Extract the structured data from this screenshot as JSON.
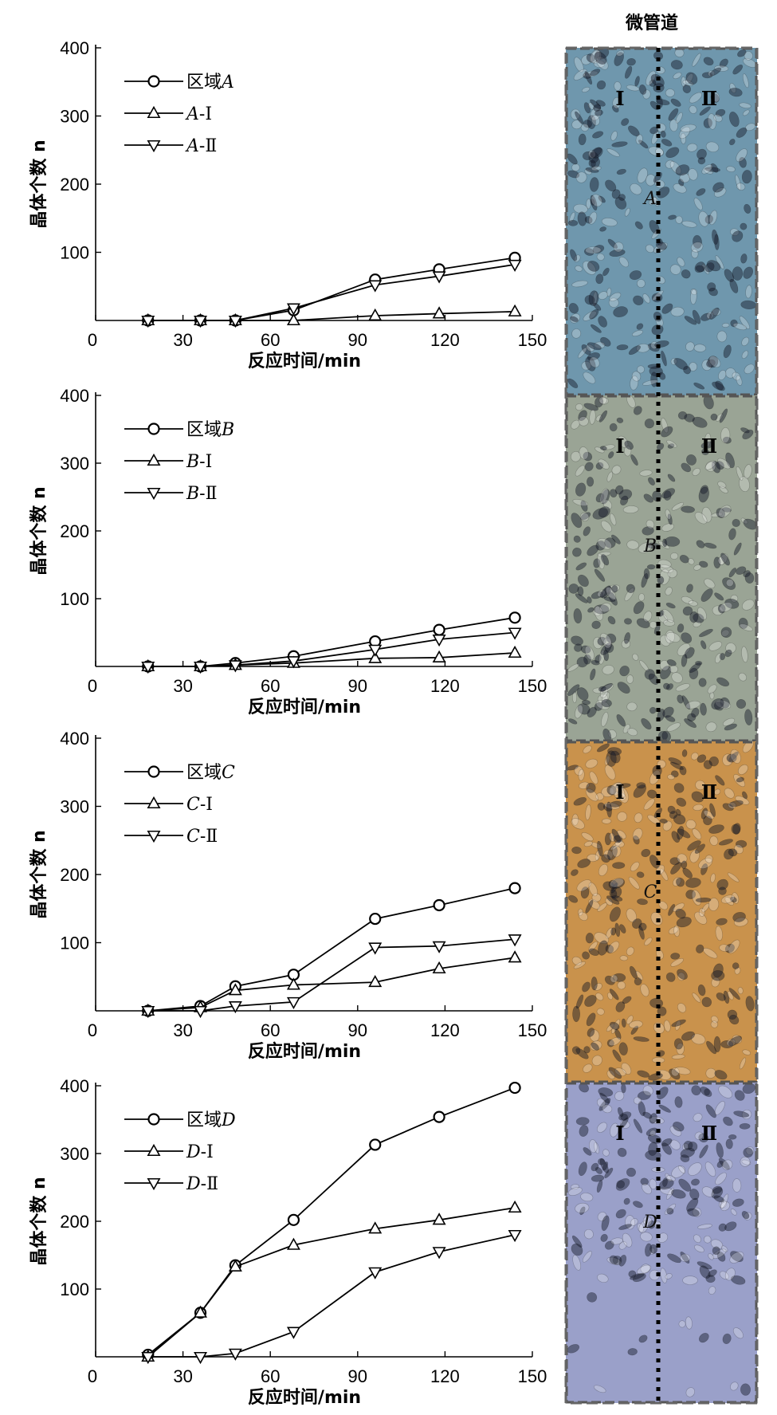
{
  "figure": {
    "channel_title": "微管道",
    "channel_panels": [
      {
        "letter": "A",
        "left_label": "Ⅰ",
        "right_label": "Ⅱ",
        "color": "#6f97ad"
      },
      {
        "letter": "B",
        "left_label": "Ⅰ",
        "right_label": "Ⅱ",
        "color": "#9aa495"
      },
      {
        "letter": "C",
        "left_label": "Ⅰ",
        "right_label": "Ⅱ",
        "color": "#c9924c"
      },
      {
        "letter": "D",
        "left_label": "Ⅰ",
        "right_label": "Ⅱ",
        "color": "#9aa0c9"
      }
    ]
  },
  "chart_data": [
    {
      "type": "line",
      "xlabel": "反应时间/min",
      "ylabel": "晶体个数 n",
      "xlim": [
        0,
        150
      ],
      "ylim": [
        0,
        400
      ],
      "xticks": [
        0,
        30,
        60,
        90,
        120,
        150
      ],
      "yticks": [
        100,
        200,
        300,
        400
      ],
      "legend_position": "top-left",
      "series": [
        {
          "name": "区域A",
          "label_parts": [
            "区域",
            "A"
          ],
          "marker": "circle",
          "x": [
            18,
            36,
            48,
            68,
            96,
            118,
            144
          ],
          "y": [
            0,
            0,
            0,
            15,
            60,
            75,
            92
          ]
        },
        {
          "name": "A-Ⅰ",
          "label_parts": [
            "A",
            "-Ⅰ"
          ],
          "marker": "triangle-up",
          "x": [
            18,
            36,
            48,
            68,
            96,
            118,
            144
          ],
          "y": [
            0,
            0,
            0,
            0,
            7,
            10,
            13
          ]
        },
        {
          "name": "A-Ⅱ",
          "label_parts": [
            "A",
            "-Ⅱ"
          ],
          "marker": "triangle-down",
          "x": [
            18,
            36,
            48,
            68,
            96,
            118,
            144
          ],
          "y": [
            0,
            0,
            0,
            18,
            52,
            65,
            82
          ]
        }
      ]
    },
    {
      "type": "line",
      "xlabel": "反应时间/min",
      "ylabel": "晶体个数 n",
      "xlim": [
        0,
        150
      ],
      "ylim": [
        0,
        400
      ],
      "xticks": [
        0,
        30,
        60,
        90,
        120,
        150
      ],
      "yticks": [
        100,
        200,
        300,
        400
      ],
      "legend_position": "top-left",
      "series": [
        {
          "name": "区域B",
          "label_parts": [
            "区域",
            "B"
          ],
          "marker": "circle",
          "x": [
            18,
            36,
            48,
            68,
            96,
            118,
            144
          ],
          "y": [
            0,
            0,
            5,
            15,
            37,
            54,
            72
          ]
        },
        {
          "name": "B-Ⅰ",
          "label_parts": [
            "B",
            "-Ⅰ"
          ],
          "marker": "triangle-up",
          "x": [
            18,
            36,
            48,
            68,
            96,
            118,
            144
          ],
          "y": [
            0,
            0,
            2,
            5,
            12,
            13,
            20
          ]
        },
        {
          "name": "B-Ⅱ",
          "label_parts": [
            "B",
            "-Ⅱ"
          ],
          "marker": "triangle-down",
          "x": [
            18,
            36,
            48,
            68,
            96,
            118,
            144
          ],
          "y": [
            0,
            0,
            2,
            8,
            25,
            40,
            50
          ]
        }
      ]
    },
    {
      "type": "line",
      "xlabel": "反应时间/min",
      "ylabel": "晶体个数 n",
      "xlim": [
        0,
        150
      ],
      "ylim": [
        0,
        400
      ],
      "xticks": [
        0,
        30,
        60,
        90,
        120,
        150
      ],
      "yticks": [
        100,
        200,
        300,
        400
      ],
      "legend_position": "top-left",
      "series": [
        {
          "name": "区域C",
          "label_parts": [
            "区域",
            "C"
          ],
          "marker": "circle",
          "x": [
            18,
            36,
            48,
            68,
            96,
            118,
            144
          ],
          "y": [
            0,
            7,
            36,
            53,
            135,
            155,
            180
          ]
        },
        {
          "name": "C-Ⅰ",
          "label_parts": [
            "C",
            "-Ⅰ"
          ],
          "marker": "triangle-up",
          "x": [
            18,
            36,
            48,
            68,
            96,
            118,
            144
          ],
          "y": [
            0,
            5,
            30,
            38,
            42,
            62,
            78
          ]
        },
        {
          "name": "C-Ⅱ",
          "label_parts": [
            "C",
            "-Ⅱ"
          ],
          "marker": "triangle-down",
          "x": [
            18,
            36,
            48,
            68,
            96,
            118,
            144
          ],
          "y": [
            0,
            0,
            7,
            13,
            93,
            95,
            105
          ]
        }
      ]
    },
    {
      "type": "line",
      "xlabel": "反应时间/min",
      "ylabel": "晶体个数 n",
      "xlim": [
        0,
        150
      ],
      "ylim": [
        0,
        400
      ],
      "xticks": [
        0,
        30,
        60,
        90,
        120,
        150
      ],
      "yticks": [
        100,
        200,
        300,
        400
      ],
      "legend_position": "top-left",
      "series": [
        {
          "name": "区域D",
          "label_parts": [
            "区域",
            "D"
          ],
          "marker": "circle",
          "x": [
            18,
            36,
            48,
            68,
            96,
            118,
            144
          ],
          "y": [
            3,
            65,
            135,
            202,
            313,
            354,
            397
          ]
        },
        {
          "name": "D-Ⅰ",
          "label_parts": [
            "D",
            "-Ⅰ"
          ],
          "marker": "triangle-up",
          "x": [
            18,
            36,
            48,
            68,
            96,
            118,
            144
          ],
          "y": [
            0,
            65,
            133,
            165,
            189,
            202,
            220
          ]
        },
        {
          "name": "D-Ⅱ",
          "label_parts": [
            "D",
            "-Ⅱ"
          ],
          "marker": "triangle-down",
          "x": [
            18,
            36,
            48,
            68,
            96,
            118,
            144
          ],
          "y": [
            0,
            0,
            5,
            37,
            125,
            155,
            180
          ]
        }
      ]
    }
  ]
}
